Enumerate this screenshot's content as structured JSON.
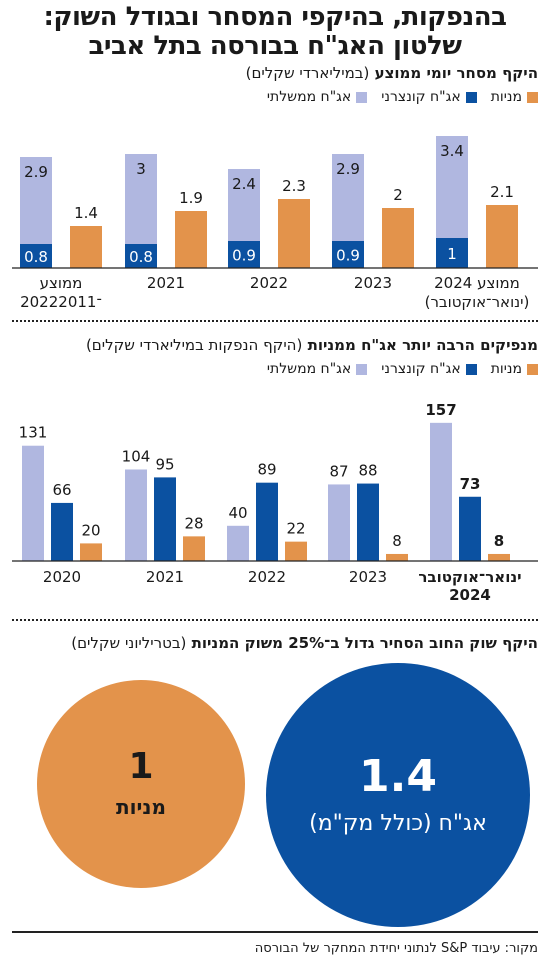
{
  "header": {
    "title_line1": "בהנפקות, בהיקפי המסחר ובגודל השוק:",
    "title_line2": "שלטון האג\"ח בבורסה בתל אביב"
  },
  "colors": {
    "government": "#b0b7e0",
    "corporate": "#0b51a1",
    "stocks": "#e3934b"
  },
  "legend": {
    "government": "אג\"ח ממשלתי",
    "corporate": "אג\"ח קונצרני",
    "stocks": "מניות"
  },
  "section1": {
    "title": "היקף מסחר יומי ממוצע",
    "subtitle": "(במיליארדי שקלים)"
  },
  "section2": {
    "title": "מנפיקים הרבה יותר אג\"ח ממניות",
    "subtitle": "(היקף הנפקות במיליארדי שקלים)"
  },
  "section3": {
    "title": "היקף שוק החוב הסחיר גדול ב־25% משוק המניות",
    "subtitle": "(בטריליוני שקלים)",
    "bonds_value": "1.4",
    "bonds_label": "אג\"ח (כולל מק\"מ)",
    "stocks_value": "1",
    "stocks_label": "מניות"
  },
  "source": "מקור: עיבוד S&P לנתוני יחידת המחקר של הבורסה",
  "chart_data": [
    {
      "type": "bar",
      "title": "היקף מסחר יומי ממוצע",
      "subtitle": "(במיליארדי שקלים)",
      "categories": [
        [
          "ממוצע",
          "2022־2011"
        ],
        [
          "2021"
        ],
        [
          "2022"
        ],
        [
          "2023"
        ],
        [
          "ממוצע 2024",
          "(ינואר־אוקטובר)"
        ]
      ],
      "series": [
        {
          "name": "אג\"ח קונצרני",
          "key": "corporate",
          "values": [
            0.8,
            0.8,
            0.9,
            0.9,
            1
          ]
        },
        {
          "name": "אג\"ח ממשלתי",
          "key": "government",
          "values": [
            2.9,
            3,
            2.4,
            2.9,
            3.4
          ]
        },
        {
          "name": "מניות",
          "key": "stocks",
          "values": [
            1.4,
            1.9,
            2.3,
            2,
            2.1
          ]
        }
      ],
      "stacked": [
        "corporate",
        "government"
      ],
      "grid": false
    },
    {
      "type": "bar",
      "title": "מנפיקים הרבה יותר אג\"ח ממניות",
      "subtitle": "(היקף הנפקות במיליארדי שקלים)",
      "categories": [
        [
          "2020"
        ],
        [
          "2021"
        ],
        [
          "2022"
        ],
        [
          "2023"
        ],
        [
          "ינואר־אוקטובר",
          "2024"
        ]
      ],
      "series": [
        {
          "name": "אג\"ח ממשלתי",
          "key": "government",
          "values": [
            131,
            104,
            40,
            87,
            157
          ]
        },
        {
          "name": "אג\"ח קונצרני",
          "key": "corporate",
          "values": [
            66,
            95,
            89,
            88,
            73
          ]
        },
        {
          "name": "מניות",
          "key": "stocks",
          "values": [
            20,
            28,
            22,
            8,
            8
          ]
        }
      ],
      "grid": false
    }
  ]
}
